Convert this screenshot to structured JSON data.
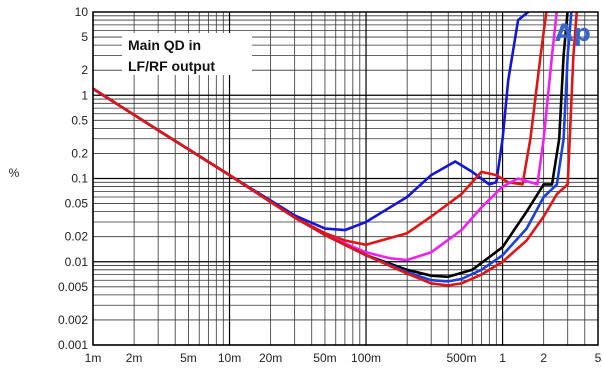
{
  "chart_data": {
    "type": "line",
    "title": "",
    "xlabel": "",
    "ylabel": "%",
    "x_scale": "log",
    "y_scale": "log",
    "xlim": [
      0.001,
      5
    ],
    "ylim": [
      0.001,
      10
    ],
    "grid": true,
    "x_ticks": [
      {
        "value": 0.001,
        "label": "1m"
      },
      {
        "value": 0.002,
        "label": "2m"
      },
      {
        "value": 0.005,
        "label": "5m"
      },
      {
        "value": 0.01,
        "label": "10m"
      },
      {
        "value": 0.02,
        "label": "20m"
      },
      {
        "value": 0.05,
        "label": "50m"
      },
      {
        "value": 0.1,
        "label": "100m"
      },
      {
        "value": 0.5,
        "label": "500m"
      },
      {
        "value": 1,
        "label": "1"
      },
      {
        "value": 2,
        "label": "2"
      },
      {
        "value": 5,
        "label": "5"
      }
    ],
    "y_ticks": [
      {
        "value": 10,
        "label": "10"
      },
      {
        "value": 5,
        "label": "5"
      },
      {
        "value": 2,
        "label": "2"
      },
      {
        "value": 1,
        "label": "1"
      },
      {
        "value": 0.5,
        "label": "0.5"
      },
      {
        "value": 0.2,
        "label": "0.2"
      },
      {
        "value": 0.1,
        "label": "0.1"
      },
      {
        "value": 0.05,
        "label": "0.05"
      },
      {
        "value": 0.02,
        "label": "0.02"
      },
      {
        "value": 0.01,
        "label": "0.01"
      },
      {
        "value": 0.005,
        "label": "0.005"
      },
      {
        "value": 0.002,
        "label": "0.002"
      },
      {
        "value": 0.001,
        "label": "0.001"
      }
    ],
    "annotation": [
      "Main QD in",
      "LF/RF output"
    ],
    "logo": "Ap",
    "series": [
      {
        "color": "#1515d8",
        "x": [
          0.001,
          0.003,
          0.01,
          0.03,
          0.05,
          0.07,
          0.1,
          0.2,
          0.3,
          0.45,
          0.6,
          0.8,
          0.9,
          1.0,
          1.1,
          1.3,
          1.6
        ],
        "y": [
          1.2,
          0.38,
          0.11,
          0.036,
          0.025,
          0.024,
          0.03,
          0.06,
          0.11,
          0.16,
          0.12,
          0.085,
          0.09,
          0.3,
          1.5,
          8,
          12
        ]
      },
      {
        "color": "#e01515",
        "x": [
          0.001,
          0.003,
          0.01,
          0.03,
          0.05,
          0.07,
          0.1,
          0.2,
          0.3,
          0.5,
          0.7,
          0.9,
          1.1,
          1.4,
          1.6,
          1.9,
          2.1
        ],
        "y": [
          1.2,
          0.38,
          0.11,
          0.034,
          0.022,
          0.018,
          0.016,
          0.022,
          0.035,
          0.065,
          0.12,
          0.11,
          0.09,
          0.085,
          0.3,
          3,
          12
        ]
      },
      {
        "color": "#ee22ee",
        "x": [
          0.001,
          0.003,
          0.01,
          0.03,
          0.05,
          0.1,
          0.15,
          0.2,
          0.3,
          0.5,
          0.7,
          1.0,
          1.3,
          1.6,
          1.8,
          2.0,
          2.3,
          2.5
        ],
        "y": [
          1.2,
          0.38,
          0.11,
          0.034,
          0.021,
          0.013,
          0.011,
          0.0105,
          0.013,
          0.024,
          0.045,
          0.08,
          0.1,
          0.09,
          0.085,
          0.3,
          3,
          12
        ]
      },
      {
        "color": "#000000",
        "x": [
          0.001,
          0.003,
          0.01,
          0.03,
          0.05,
          0.1,
          0.2,
          0.3,
          0.4,
          0.6,
          1.0,
          1.5,
          2.0,
          2.3,
          2.6,
          2.8,
          3.0
        ],
        "y": [
          1.2,
          0.38,
          0.11,
          0.034,
          0.021,
          0.012,
          0.008,
          0.0068,
          0.0066,
          0.008,
          0.015,
          0.04,
          0.085,
          0.085,
          0.3,
          3,
          12
        ]
      },
      {
        "color": "#1a40e0",
        "x": [
          0.001,
          0.003,
          0.01,
          0.03,
          0.05,
          0.1,
          0.2,
          0.3,
          0.4,
          0.5,
          0.7,
          1.0,
          1.5,
          2.0,
          2.5,
          2.8,
          3.0,
          3.2
        ],
        "y": [
          1.2,
          0.38,
          0.11,
          0.034,
          0.021,
          0.012,
          0.0075,
          0.006,
          0.0058,
          0.0062,
          0.008,
          0.012,
          0.025,
          0.06,
          0.085,
          0.3,
          3,
          12
        ]
      },
      {
        "color": "#e01515",
        "x": [
          0.001,
          0.003,
          0.01,
          0.03,
          0.05,
          0.1,
          0.2,
          0.3,
          0.4,
          0.5,
          0.7,
          1.0,
          1.5,
          2.0,
          2.5,
          3.0,
          3.3,
          3.5
        ],
        "y": [
          1.2,
          0.38,
          0.11,
          0.034,
          0.021,
          0.012,
          0.0072,
          0.0055,
          0.0052,
          0.0055,
          0.007,
          0.01,
          0.018,
          0.035,
          0.065,
          0.085,
          3,
          12
        ]
      }
    ]
  }
}
